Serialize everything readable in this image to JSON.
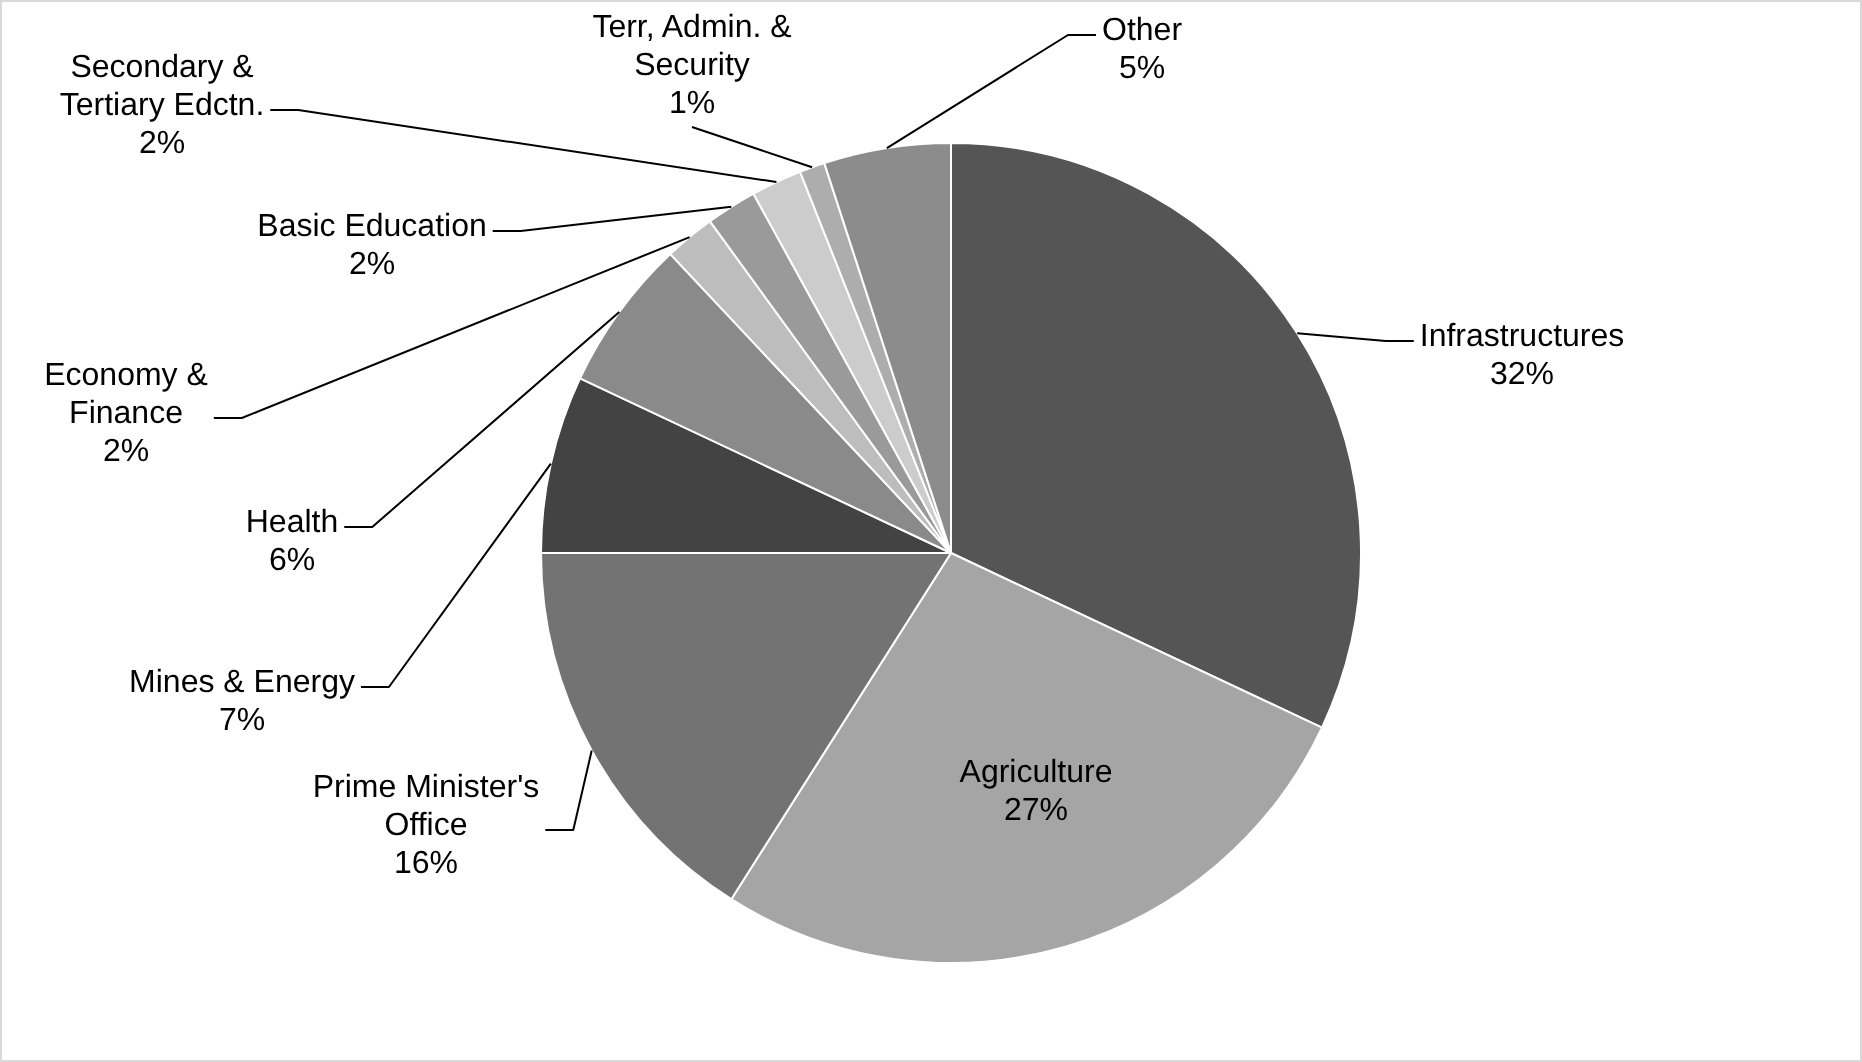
{
  "chart_data": {
    "type": "pie",
    "categories": [
      "Infrastructures",
      "Agriculture",
      "Prime Minister's Office",
      "Mines & Energy",
      "Health",
      "Economy & Finance",
      "Basic Education",
      "Secondary & Tertiary Edctn.",
      "Terr, Admin. & Security",
      "Other"
    ],
    "values": [
      32,
      27,
      16,
      7,
      6,
      2,
      2,
      2,
      1,
      5
    ],
    "value_labels": [
      "32%",
      "27%",
      "16%",
      "7%",
      "6%",
      "2%",
      "2%",
      "2%",
      "1%",
      "5%"
    ],
    "colors": [
      "#555555",
      "#a5a5a5",
      "#737373",
      "#434343",
      "#8a8a8a",
      "#bdbdbd",
      "#9a9a9a",
      "#cccccc",
      "#adadad",
      "#8c8c8c"
    ],
    "legend": false
  }
}
